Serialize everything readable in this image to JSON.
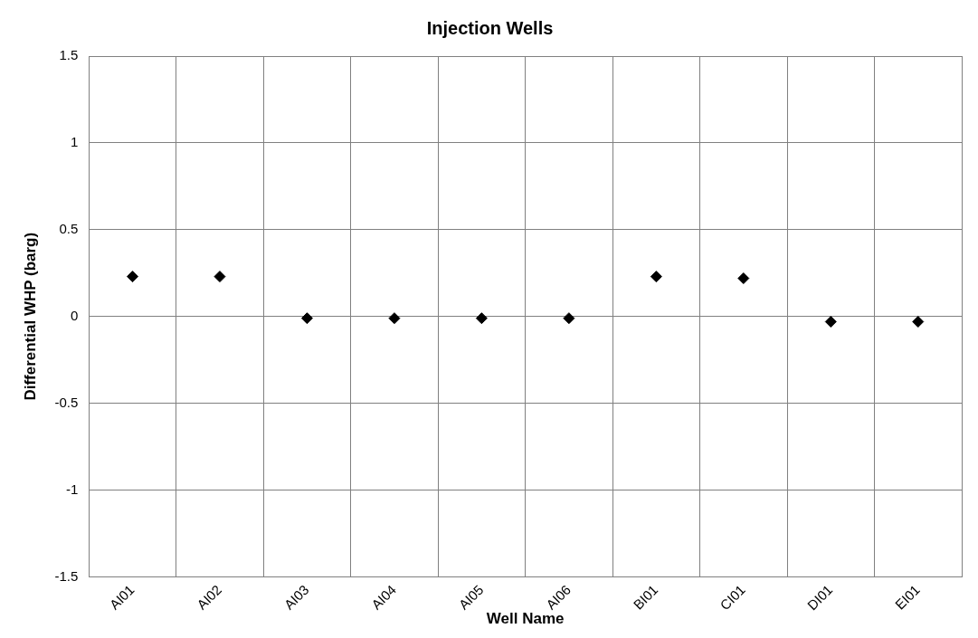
{
  "chart_data": {
    "type": "scatter",
    "title": "Injection Wells",
    "xlabel": "Well Name",
    "ylabel": "Differential WHP (barg)",
    "categories": [
      "AI01",
      "AI02",
      "AI03",
      "AI04",
      "AI05",
      "AI06",
      "BI01",
      "CI01",
      "DI01",
      "EI01"
    ],
    "series": [
      {
        "color": "#000000",
        "values": [
          0.23,
          0.23,
          -0.01,
          -0.01,
          -0.01,
          -0.01,
          0.23,
          0.22,
          -0.03,
          -0.03
        ]
      }
    ],
    "ylim": [
      -1.5,
      1.5
    ],
    "yticks": [
      -1.5,
      -1,
      -0.5,
      0,
      0.5,
      1,
      1.5
    ],
    "grid": true,
    "legend": false,
    "marker": "diamond"
  }
}
